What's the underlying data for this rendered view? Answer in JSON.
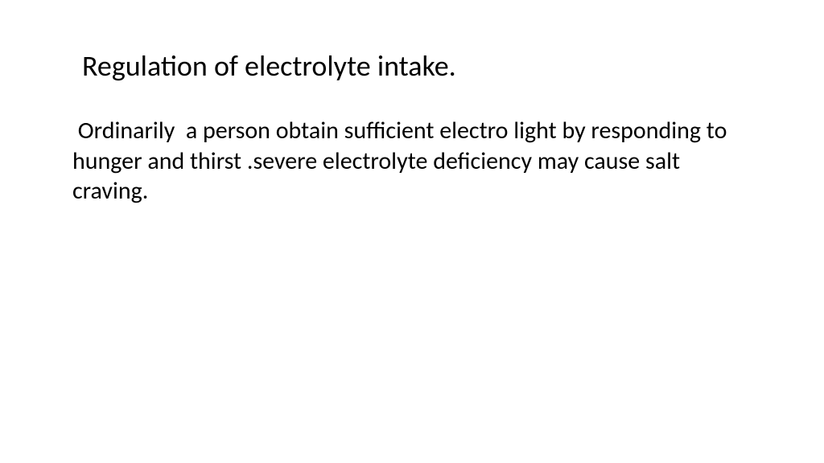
{
  "slide": {
    "title": "Regulation of electrolyte intake.",
    "body": " Ordinarily  a person obtain sufficient electro light by responding to hunger and thirst .severe electrolyte deficiency may cause salt craving.",
    "background_color": "#ffffff",
    "text_color": "#000000",
    "title_fontsize": 36,
    "body_fontsize": 30,
    "font_family": "Calibri"
  }
}
